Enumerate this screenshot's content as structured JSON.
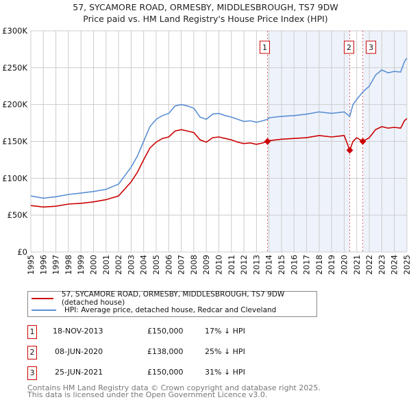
{
  "chart_data": {
    "type": "line",
    "title": "57, SYCAMORE ROAD, ORMESBY, MIDDLESBROUGH, TS7 9DW",
    "subtitle": "Price paid vs. HM Land Registry's House Price Index (HPI)",
    "xlim": [
      1995,
      2025
    ],
    "ylim": [
      0,
      300000
    ],
    "y_ticks": [
      {
        "v": 0,
        "label": "£0"
      },
      {
        "v": 50000,
        "label": "£50K"
      },
      {
        "v": 100000,
        "label": "£100K"
      },
      {
        "v": 150000,
        "label": "£150K"
      },
      {
        "v": 200000,
        "label": "£200K"
      },
      {
        "v": 250000,
        "label": "£250K"
      },
      {
        "v": 300000,
        "label": "£300K"
      }
    ],
    "x_ticks": [
      "1995",
      "1996",
      "1997",
      "1998",
      "1999",
      "2000",
      "2001",
      "2002",
      "2003",
      "2004",
      "2005",
      "2006",
      "2007",
      "2008",
      "2009",
      "2010",
      "2011",
      "2012",
      "2013",
      "2014",
      "2015",
      "2016",
      "2017",
      "2018",
      "2019",
      "2020",
      "2021",
      "2022",
      "2023",
      "2024",
      "2025"
    ],
    "grid": true,
    "x": [
      1995,
      1996,
      1997,
      1998,
      1999,
      2000,
      2001,
      2002,
      2003,
      2003.5,
      2004,
      2004.5,
      2005,
      2005.5,
      2006,
      2006.5,
      2007,
      2007.5,
      2008,
      2008.5,
      2009,
      2009.5,
      2010,
      2010.5,
      2011,
      2011.5,
      2012,
      2012.5,
      2013,
      2013.5,
      2013.88,
      2014,
      2015,
      2016,
      2017,
      2018,
      2019,
      2020,
      2020.44,
      2020.7,
      2021,
      2021.48,
      2022,
      2022.5,
      2023,
      2023.5,
      2024,
      2024.5,
      2024.8,
      2025
    ],
    "series": [
      {
        "name": "57, SYCAMORE ROAD, ORMESBY, MIDDLESBROUGH, TS7 9DW (detached house)",
        "color": "#cc0000",
        "values": [
          63000,
          61000,
          62000,
          65000,
          66000,
          68000,
          71000,
          76000,
          95000,
          108000,
          125000,
          141000,
          149000,
          154000,
          156000,
          164000,
          166000,
          164000,
          162000,
          152000,
          149000,
          155000,
          156000,
          154000,
          152000,
          149000,
          147000,
          148000,
          146000,
          148000,
          150000,
          151000,
          153000,
          154000,
          155000,
          158000,
          156000,
          158000,
          138000,
          150000,
          155000,
          150000,
          155000,
          166000,
          170000,
          168000,
          169000,
          168000,
          178000,
          181000
        ]
      },
      {
        "name": "HPI: Average price, detached house, Redcar and Cleveland",
        "color": "#5b8fd4",
        "values": [
          76000,
          73000,
          75000,
          78000,
          80000,
          82000,
          85000,
          92000,
          115000,
          130000,
          150000,
          170000,
          180000,
          185000,
          188000,
          198000,
          200000,
          198000,
          195000,
          183000,
          180000,
          187000,
          188000,
          185000,
          183000,
          180000,
          177000,
          178000,
          176000,
          178000,
          180000,
          182000,
          184000,
          185000,
          187000,
          190000,
          188000,
          190000,
          184000,
          200000,
          207000,
          217000,
          225000,
          240000,
          247000,
          243000,
          245000,
          244000,
          258000,
          263000
        ]
      }
    ],
    "sales": [
      {
        "n": "1",
        "x": 2013.88,
        "date": "18-NOV-2013",
        "price_value": 150000,
        "price": "£150,000",
        "hpi": "17% ↓ HPI"
      },
      {
        "n": "2",
        "x": 2020.44,
        "date": "08-JUN-2020",
        "price_value": 138000,
        "price": "£138,000",
        "hpi": "25% ↓ HPI"
      },
      {
        "n": "3",
        "x": 2021.48,
        "date": "25-JUN-2021",
        "price_value": 150000,
        "price": "£150,000",
        "hpi": "31% ↓ HPI"
      }
    ],
    "legend_position": "below"
  },
  "footer": {
    "line1": "Contains HM Land Registry data © Crown copyright and database right 2025.",
    "line2": "This data is licensed under the Open Government Licence v3.0."
  }
}
